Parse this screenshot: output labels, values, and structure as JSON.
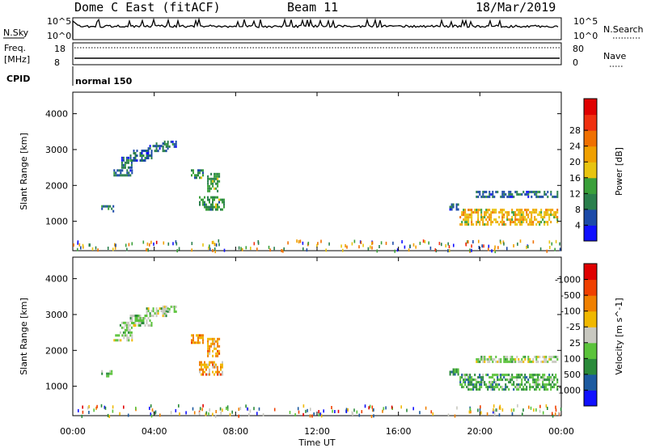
{
  "header": {
    "title": "Dome C East (fitACF)",
    "beam": "Beam 11",
    "date": "18/Mar/2019"
  },
  "housekeeping": {
    "nsky_label": "N.Sky",
    "nsearch_label": "N.Search",
    "nsky_tick_top": "10^5",
    "nsky_tick_bottom": "10^0",
    "nsearch_tick_top": "10^5",
    "nsearch_tick_bottom": "10^0",
    "freq_label": "Freq.",
    "freq_unit": "[MHz]",
    "freq_tick_top": "18",
    "freq_tick_bottom": "8",
    "nave_label": "Nave",
    "nave_tick_top": "80",
    "nave_tick_bottom": "0",
    "cpid_label": "CPID",
    "cpid_value": "normal 150"
  },
  "chart_data": [
    {
      "type": "heatmap",
      "name": "power",
      "ylabel": "Slant Range [km]",
      "yticks": [
        1000,
        2000,
        3000,
        4000
      ],
      "ylim": [
        180,
        4600
      ],
      "colorbar": {
        "label": "Power [dB]",
        "ticks": [
          "4",
          "8",
          "12",
          "16",
          "20",
          "24",
          "28"
        ],
        "colors": [
          "#1010ff",
          "#1c4aa8",
          "#2a7f4c",
          "#3aa03a",
          "#e8c40f",
          "#f0a000",
          "#f07000",
          "#f03010",
          "#e00000"
        ]
      },
      "patches": [
        {
          "t": [
            1.4,
            2.0
          ],
          "r": [
            1300,
            1450
          ],
          "level": "8"
        },
        {
          "t": [
            2.0,
            2.9
          ],
          "r": [
            2300,
            2450
          ],
          "level": "8"
        },
        {
          "t": [
            2.3,
            2.9
          ],
          "r": [
            2500,
            2800
          ],
          "level": "8"
        },
        {
          "t": [
            2.8,
            3.9
          ],
          "r": [
            2700,
            3000
          ],
          "level": "8"
        },
        {
          "t": [
            3.6,
            4.7
          ],
          "r": [
            2950,
            3200
          ],
          "level": "8"
        },
        {
          "t": [
            4.4,
            5.1
          ],
          "r": [
            3050,
            3250
          ],
          "level": "8"
        },
        {
          "t": [
            5.8,
            6.4
          ],
          "r": [
            2200,
            2450
          ],
          "level": "12"
        },
        {
          "t": [
            6.2,
            7.4
          ],
          "r": [
            1300,
            1700
          ],
          "level": "12"
        },
        {
          "t": [
            6.6,
            7.2
          ],
          "r": [
            1850,
            2350
          ],
          "level": "12"
        },
        {
          "t": [
            18.5,
            18.9
          ],
          "r": [
            1350,
            1500
          ],
          "level": "8"
        },
        {
          "t": [
            19.0,
            23.8
          ],
          "r": [
            900,
            1350
          ],
          "level": "20"
        },
        {
          "t": [
            19.8,
            23.8
          ],
          "r": [
            1650,
            1850
          ],
          "level": "8"
        }
      ]
    },
    {
      "type": "heatmap",
      "name": "velocity",
      "ylabel": "Slant Range [km]",
      "yticks": [
        1000,
        2000,
        3000,
        4000
      ],
      "ylim": [
        180,
        4600
      ],
      "colorbar": {
        "label": "Velocity [m s^-1]",
        "ticks": [
          "1000",
          "500",
          "100",
          "25",
          "-25",
          "-100",
          "-500",
          "-1000"
        ],
        "colors": [
          "#1010ff",
          "#1c5aa0",
          "#2a8a3a",
          "#5ac33a",
          "#c8c8c0",
          "#f0b800",
          "#f08000",
          "#f04000",
          "#e00000"
        ]
      },
      "patches": [
        {
          "t": [
            1.4,
            2.0
          ],
          "r": [
            1300,
            1450
          ],
          "level": "100"
        },
        {
          "t": [
            2.0,
            2.9
          ],
          "r": [
            2300,
            2450
          ],
          "level": "25"
        },
        {
          "t": [
            2.3,
            2.9
          ],
          "r": [
            2500,
            2800
          ],
          "level": "25"
        },
        {
          "t": [
            2.8,
            3.9
          ],
          "r": [
            2700,
            3000
          ],
          "level": "25"
        },
        {
          "t": [
            3.6,
            4.7
          ],
          "r": [
            2950,
            3200
          ],
          "level": "25"
        },
        {
          "t": [
            4.4,
            5.1
          ],
          "r": [
            3050,
            3250
          ],
          "level": "25"
        },
        {
          "t": [
            5.8,
            6.4
          ],
          "r": [
            2200,
            2450
          ],
          "level": "-100"
        },
        {
          "t": [
            6.2,
            7.4
          ],
          "r": [
            1300,
            1700
          ],
          "level": "-100"
        },
        {
          "t": [
            6.6,
            7.2
          ],
          "r": [
            1850,
            2350
          ],
          "level": "-100"
        },
        {
          "t": [
            18.5,
            18.9
          ],
          "r": [
            1350,
            1500
          ],
          "level": "100"
        },
        {
          "t": [
            19.0,
            23.8
          ],
          "r": [
            900,
            1350
          ],
          "level": "100"
        },
        {
          "t": [
            19.8,
            23.8
          ],
          "r": [
            1650,
            1850
          ],
          "level": "25"
        }
      ]
    }
  ],
  "x_axis": {
    "label": "Time UT",
    "ticks": [
      "00:00",
      "04:00",
      "08:00",
      "12:00",
      "16:00",
      "20:00",
      "00:00"
    ],
    "range_hours": [
      0,
      24
    ]
  }
}
